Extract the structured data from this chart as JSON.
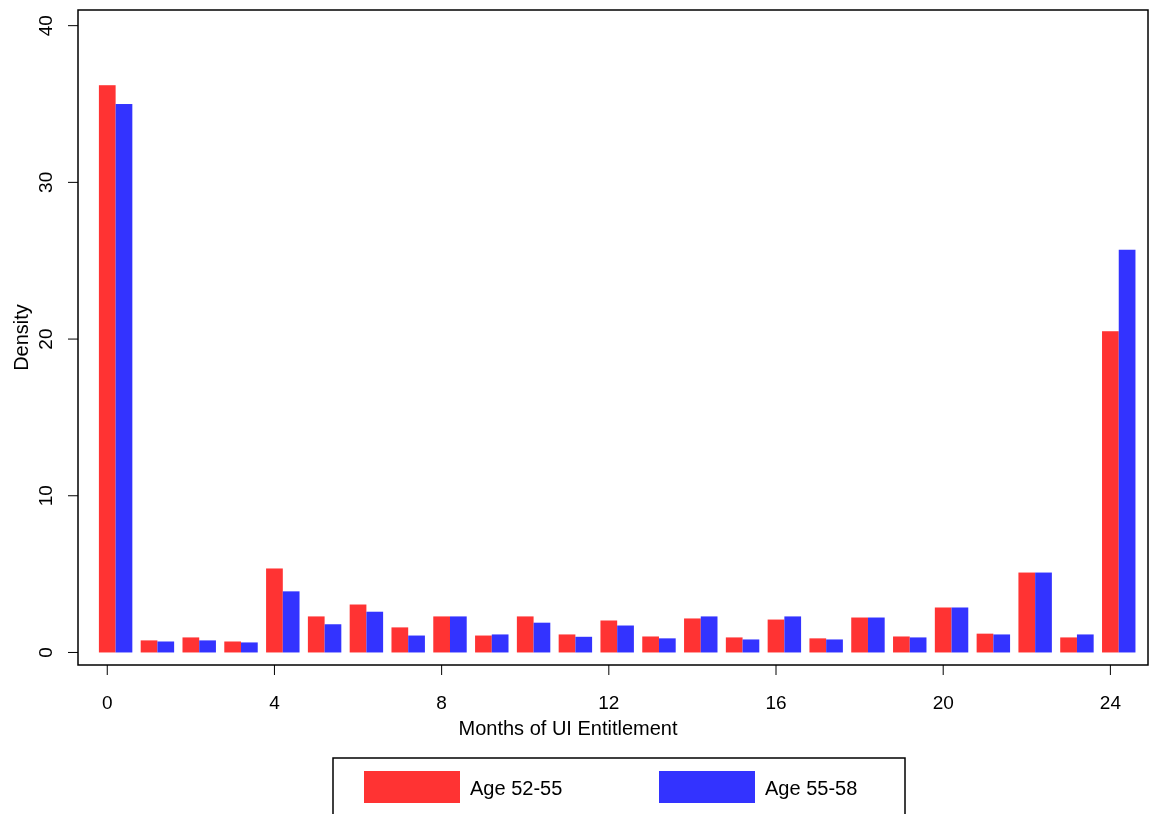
{
  "chart_data": {
    "type": "bar",
    "xlabel": "Months of UI Entitlement",
    "ylabel": "Density",
    "x": [
      0,
      1,
      2,
      3,
      4,
      5,
      6,
      7,
      8,
      9,
      10,
      11,
      12,
      13,
      14,
      15,
      16,
      17,
      18,
      19,
      20,
      21,
      22,
      23,
      24
    ],
    "series": [
      {
        "name": "Age 52-55",
        "color": "#ff3333",
        "values": [
          36.2,
          0.77,
          0.96,
          0.7,
          5.36,
          2.3,
          3.06,
          1.6,
          2.3,
          1.08,
          2.3,
          1.15,
          2.04,
          1.02,
          2.17,
          0.96,
          2.1,
          0.9,
          2.23,
          1.02,
          2.87,
          1.2,
          5.1,
          0.96,
          20.5
        ]
      },
      {
        "name": "Age 55-58",
        "color": "#3333ff",
        "values": [
          35.0,
          0.7,
          0.77,
          0.64,
          3.9,
          1.8,
          2.6,
          1.08,
          2.3,
          1.15,
          1.9,
          1.0,
          1.72,
          0.9,
          2.3,
          0.83,
          2.3,
          0.83,
          2.23,
          0.96,
          2.87,
          1.15,
          5.1,
          1.15,
          25.7
        ]
      }
    ],
    "xlim": [
      -0.7,
      24.9
    ],
    "xticks": [
      0,
      4,
      8,
      12,
      16,
      20,
      24
    ],
    "ylim": [
      -0.8,
      41
    ],
    "yticks": [
      0,
      10,
      20,
      30,
      40
    ],
    "grid": false,
    "legend": "bottom"
  }
}
